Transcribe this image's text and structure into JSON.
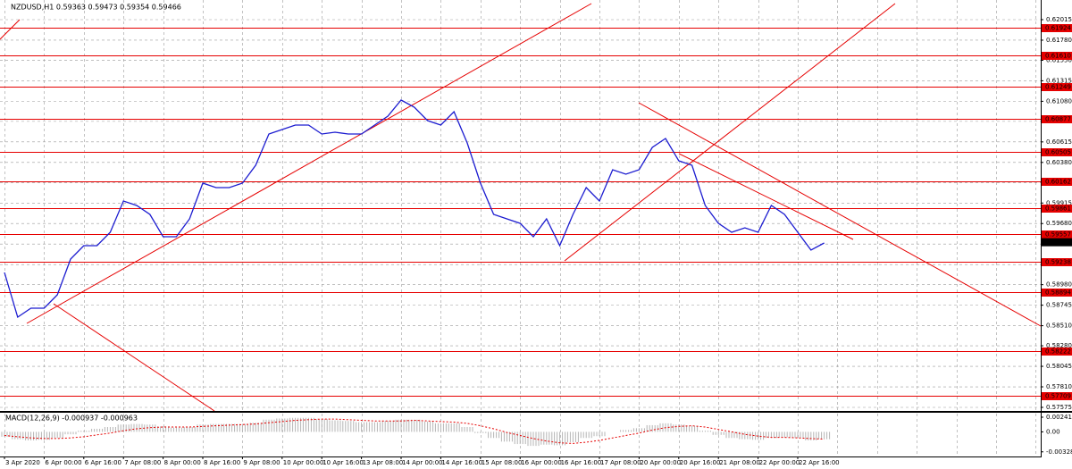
{
  "chart_data": [
    {
      "type": "line",
      "title": "NZDUSD,H1  0.59363 0.59473 0.59354 0.59466",
      "categories": [
        "3 Apr 2020",
        null,
        null,
        "6 Apr 00:00",
        null,
        null,
        "6 Apr 16:00",
        null,
        null,
        "7 Apr 08:00",
        null,
        null,
        "8 Apr 00:00",
        null,
        null,
        "8 Apr 16:00",
        null,
        null,
        "9 Apr 08:00",
        null,
        null,
        "10 Apr 00:00",
        null,
        null,
        "10 Apr 16:00",
        null,
        null,
        "13 Apr 08:00",
        null,
        null,
        "14 Apr 00:00",
        null,
        null,
        "14 Apr 16:00",
        null,
        null,
        "15 Apr 08:00",
        null,
        null,
        "16 Apr 00:00",
        null,
        null,
        "16 Apr 16:00",
        null,
        null,
        "17 Apr 08:00",
        null,
        null,
        "20 Apr 00:00",
        null,
        null,
        "20 Apr 16:00",
        null,
        null,
        "21 Apr 08:00",
        null,
        null,
        "22 Apr 00:00",
        null,
        null,
        "22 Apr 16:00",
        null,
        null
      ],
      "values": [
        0.5912,
        0.58608,
        0.58711,
        0.58711,
        0.58864,
        0.59273,
        0.59427,
        0.59427,
        0.5958,
        0.59938,
        0.59887,
        0.59785,
        0.59529,
        0.59529,
        0.59734,
        0.60143,
        0.60092,
        0.60092,
        0.60143,
        0.60347,
        0.60705,
        0.60757,
        0.60808,
        0.60808,
        0.60705,
        0.60726,
        0.60705,
        0.60705,
        0.60808,
        0.6091,
        0.61094,
        0.61012,
        0.60859,
        0.60808,
        0.60961,
        0.60603,
        0.60143,
        0.59785,
        0.59734,
        0.59682,
        0.59529,
        0.59734,
        0.59427,
        0.59785,
        0.60092,
        0.59938,
        0.60296,
        0.60245,
        0.60296,
        0.60552,
        0.60654,
        0.60399,
        0.60347,
        0.59887,
        0.59682,
        0.5958,
        0.59631,
        0.5958,
        0.59887,
        0.59785,
        0.5958,
        0.59376,
        0.59457
      ],
      "color": "#1c1cd0",
      "ylim": [
        0.57534,
        0.6224
      ],
      "yticks": [
        0.62015,
        {
          "value": 0.6178,
          "label": "0.61780"
        },
        {
          "value": 0.6155,
          "label": "0.61550"
        },
        0.61315,
        {
          "value": 0.6108,
          "label": "0.61080"
        },
        {
          "value": 0.6085,
          "label": "0.60850"
        },
        0.60615,
        {
          "value": 0.6038,
          "label": "0.60380"
        },
        {
          "value": 0.6015,
          "label": "0.60150"
        },
        0.59915,
        {
          "value": 0.5968,
          "label": "0.59680"
        },
        0.59445,
        {
          "value": 0.5921,
          "label": "0.59210"
        },
        {
          "value": 0.5898,
          "label": "0.58980"
        },
        0.58745,
        {
          "value": 0.5851,
          "label": "0.58510"
        },
        {
          "value": 0.5828,
          "label": "0.58280"
        },
        0.58045,
        {
          "value": 0.5781,
          "label": "0.57810"
        },
        0.57575
      ],
      "grid": true,
      "levels": [
        0.61924,
        {
          "value": 0.6161,
          "label": "0.61610"
        },
        0.61249,
        0.60877,
        0.60505,
        0.60162,
        0.59861,
        0.59557,
        0.59238,
        0.58894,
        0.58222,
        0.57709
      ],
      "level_color": "#e60000",
      "current": 0.59466
    },
    {
      "type": "macd",
      "title": "MACD(12,26,9) -0.000937 -0.000963",
      "values": [
        -0.0008,
        -0.0012,
        -0.0014,
        -0.0013,
        -0.001,
        -0.0004,
        0.0002,
        0.0005,
        0.0008,
        0.0012,
        0.0013,
        0.0012,
        0.0009,
        0.0007,
        0.0008,
        0.0012,
        0.0013,
        0.0013,
        0.0013,
        0.0015,
        0.002,
        0.0022,
        0.0023,
        0.0023,
        0.0021,
        0.0019,
        0.0018,
        0.0016,
        0.0016,
        0.0018,
        0.002,
        0.002,
        0.0017,
        0.0014,
        0.0014,
        0.0008,
        -0.0002,
        -0.001,
        -0.0016,
        -0.002,
        -0.0023,
        -0.0021,
        -0.0022,
        -0.0017,
        -0.001,
        -0.0007,
        0.0,
        0.0003,
        0.0006,
        0.0011,
        0.0014,
        0.0012,
        0.001,
        0.0002,
        -0.0005,
        -0.001,
        -0.0012,
        -0.0013,
        -0.001,
        -0.0009,
        -0.001,
        -0.0014,
        -0.0012
      ],
      "color": "#b4b4b4",
      "signal": [
        -0.0006,
        -0.0008,
        -0.001,
        -0.0011,
        -0.0011,
        -0.001,
        -0.0008,
        -0.0005,
        -0.0002,
        0.0002,
        0.0005,
        0.0007,
        0.0008,
        0.0008,
        0.0008,
        0.0009,
        0.001,
        0.0011,
        0.0012,
        0.0013,
        0.0015,
        0.0017,
        0.0019,
        0.002,
        0.0021,
        0.0021,
        0.002,
        0.0019,
        0.0018,
        0.0018,
        0.0018,
        0.0019,
        0.0018,
        0.0017,
        0.0016,
        0.0014,
        0.001,
        0.0005,
        -0.0001,
        -0.0006,
        -0.0011,
        -0.0015,
        -0.0018,
        -0.0019,
        -0.0017,
        -0.0014,
        -0.001,
        -0.0006,
        -0.0002,
        0.0003,
        0.0007,
        0.0009,
        0.001,
        0.0008,
        0.0004,
        0.0,
        -0.0004,
        -0.0007,
        -0.0009,
        -0.0009,
        -0.001,
        -0.0011,
        -0.0012
      ],
      "signal_color": "#e60000",
      "ylim": [
        -0.0039,
        0.003
      ],
      "yticks": [
        0.002411,
        {
          "value": 0,
          "label": "0.00"
        },
        -0.00328
      ]
    }
  ]
}
